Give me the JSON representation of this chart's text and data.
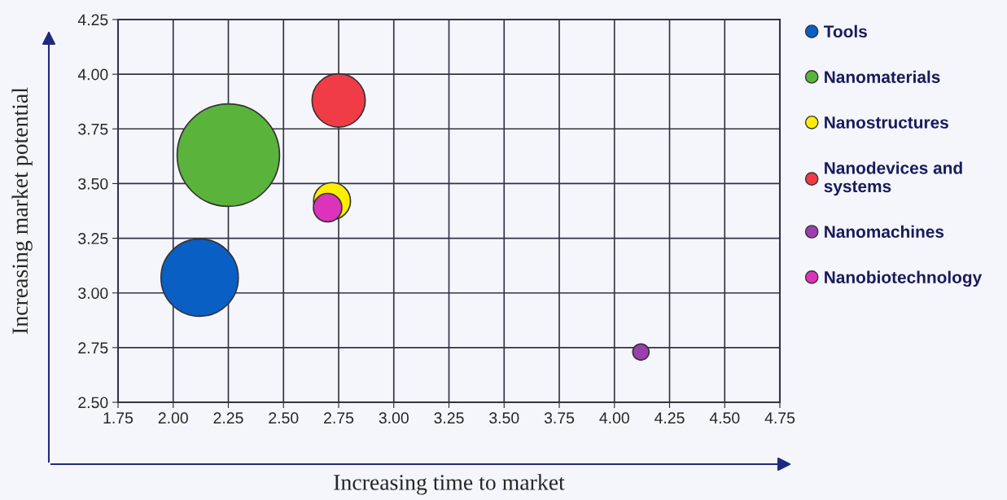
{
  "chart_data": {
    "type": "bubble",
    "xlabel": "Increasing time to market",
    "ylabel": "Increasing market potential",
    "series": [
      {
        "name": "Tools",
        "color": "#0a5fc4",
        "x": [
          2.12
        ],
        "values": [
          3.07
        ],
        "sizes": [
          0.57
        ]
      },
      {
        "name": "Nanomaterials",
        "color": "#5ab43c",
        "x": [
          2.25
        ],
        "values": [
          3.63
        ],
        "sizes": [
          1
        ]
      },
      {
        "name": "Nanostructures",
        "color": "#ffee00",
        "x": [
          2.72
        ],
        "values": [
          3.42
        ],
        "sizes": [
          0.13
        ]
      },
      {
        "name": "Nanodevices and\nsystems",
        "color": "#f03c46",
        "x": [
          2.75
        ],
        "values": [
          3.88
        ],
        "sizes": [
          0.27
        ]
      },
      {
        "name": "Nanomachines",
        "color": "#9b3fb0",
        "x": [
          4.12
        ],
        "values": [
          2.73
        ],
        "sizes": [
          0.025
        ]
      },
      {
        "name": "Nanobiotechnology",
        "color": "#dd33bb",
        "x": [
          2.7
        ],
        "values": [
          3.39
        ],
        "sizes": [
          0.077
        ]
      }
    ],
    "xlim": [
      1.75,
      4.75
    ],
    "xticks": [
      {
        "value": 1.75,
        "label": "1.75"
      },
      {
        "value": 2,
        "label": "2.00"
      },
      {
        "value": 2.25,
        "label": "2.25"
      },
      {
        "value": 2.5,
        "label": "2.50"
      },
      {
        "value": 2.75,
        "label": "2.75"
      },
      {
        "value": 3,
        "label": "3.00"
      },
      {
        "value": 3.25,
        "label": "3.25"
      },
      {
        "value": 3.5,
        "label": "3.50"
      },
      {
        "value": 3.75,
        "label": "3.75"
      },
      {
        "value": 4,
        "label": "4.00"
      },
      {
        "value": 4.25,
        "label": "4.25"
      },
      {
        "value": 4.5,
        "label": "4.50"
      },
      {
        "value": 4.75,
        "label": "4.75"
      }
    ],
    "ylim": [
      2.5,
      4.25
    ],
    "yticks": [
      {
        "value": 2.5,
        "label": "2.50"
      },
      {
        "value": 2.75,
        "label": "2.75"
      },
      {
        "value": 3,
        "label": "3.00"
      },
      {
        "value": 3.25,
        "label": "3.25"
      },
      {
        "value": 3.5,
        "label": "3.50"
      },
      {
        "value": 3.75,
        "label": "3.75"
      },
      {
        "value": 4,
        "label": "4.00"
      },
      {
        "value": 4.25,
        "label": "4.25"
      }
    ],
    "grid": true,
    "legend": "right"
  }
}
